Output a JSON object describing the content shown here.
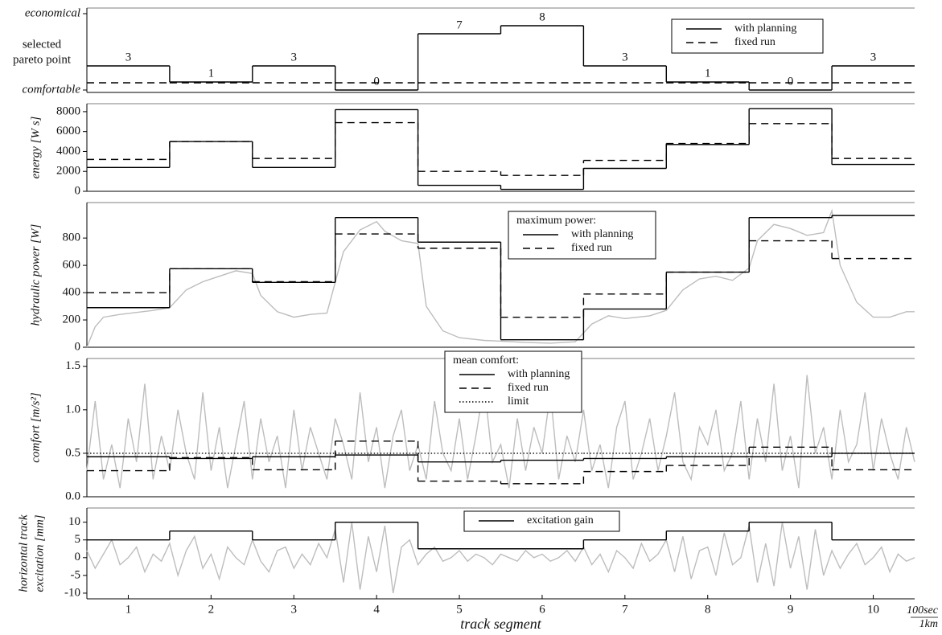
{
  "chart_data": [
    {
      "type": "step",
      "ylabel": [
        "selected",
        "pareto point"
      ],
      "xlim": [
        0.5,
        10.5
      ],
      "ylim": [
        -0.3,
        10.2
      ],
      "yticks": [
        {
          "value": 0,
          "label": "comfortable"
        },
        {
          "value": 9.5,
          "label": "economical"
        }
      ],
      "x": [
        1,
        2,
        3,
        4,
        5,
        6,
        7,
        8,
        9,
        10
      ],
      "data_labels": true,
      "legend": "upper right",
      "series": [
        {
          "name": "with planning",
          "color": "#000000",
          "dash": "solid",
          "values": [
            3,
            1,
            3,
            0,
            7,
            8,
            3,
            1,
            0,
            3
          ]
        },
        {
          "name": "fixed run",
          "color": "#000000",
          "dash": "dashed",
          "values": [
            0.9,
            0.9,
            0.9,
            0.9,
            0.9,
            0.9,
            0.9,
            0.9,
            0.9,
            0.9
          ]
        }
      ]
    },
    {
      "type": "step",
      "ylabel": [
        "energy [W s]"
      ],
      "xlim": [
        0.5,
        10.5
      ],
      "ylim": [
        0,
        8800
      ],
      "yticks": [
        0,
        2000,
        4000,
        6000,
        8000
      ],
      "x": [
        1,
        2,
        3,
        4,
        5,
        6,
        7,
        8,
        9,
        10
      ],
      "series": [
        {
          "color": "#000000",
          "dash": "solid",
          "values": [
            2400,
            5000,
            2400,
            8200,
            600,
            200,
            2300,
            4700,
            8300,
            2700
          ]
        },
        {
          "color": "#000000",
          "dash": "dashed",
          "values": [
            3200,
            5000,
            3300,
            6900,
            2000,
            1600,
            3100,
            4800,
            6800,
            3300
          ]
        }
      ]
    },
    {
      "type": "step",
      "ylabel": [
        "hydraulic power [W]"
      ],
      "xlim": [
        0.5,
        10.5
      ],
      "ylim": [
        0,
        1060
      ],
      "yticks": [
        0,
        200,
        400,
        600,
        800
      ],
      "x": [
        1,
        2,
        3,
        4,
        5,
        6,
        7,
        8,
        9,
        10
      ],
      "legend": "upper center",
      "legend_title": "maximum power:",
      "trace": {
        "color": "#bdbdbd",
        "x": [
          0.5,
          0.6,
          0.7,
          0.9,
          1.1,
          1.3,
          1.5,
          1.7,
          1.9,
          2.1,
          2.3,
          2.5,
          2.6,
          2.8,
          3.0,
          3.2,
          3.4,
          3.6,
          3.8,
          4.0,
          4.1,
          4.3,
          4.5,
          4.6,
          4.8,
          5.0,
          5.3,
          5.5,
          5.8,
          6.1,
          6.4,
          6.6,
          6.8,
          7.0,
          7.3,
          7.5,
          7.7,
          7.9,
          8.1,
          8.3,
          8.5,
          8.6,
          8.8,
          9.0,
          9.2,
          9.4,
          9.5,
          9.6,
          9.8,
          10.0,
          10.2,
          10.4,
          10.5
        ],
        "values": [
          0,
          150,
          220,
          240,
          255,
          270,
          290,
          420,
          480,
          520,
          560,
          540,
          380,
          260,
          220,
          240,
          250,
          700,
          860,
          920,
          850,
          780,
          760,
          300,
          120,
          70,
          50,
          45,
          35,
          30,
          40,
          170,
          230,
          210,
          230,
          270,
          420,
          500,
          520,
          490,
          580,
          780,
          900,
          870,
          820,
          840,
          1000,
          600,
          330,
          220,
          220,
          260,
          260
        ]
      },
      "series": [
        {
          "name": "with planning",
          "color": "#000000",
          "dash": "solid",
          "values": [
            290,
            575,
            475,
            950,
            770,
            55,
            280,
            550,
            950,
            965
          ]
        },
        {
          "name": "fixed run",
          "color": "#000000",
          "dash": "dashed",
          "values": [
            400,
            575,
            480,
            830,
            725,
            220,
            390,
            550,
            780,
            650
          ]
        }
      ]
    },
    {
      "type": "step",
      "ylabel": [
        "comfort [m/s²]"
      ],
      "xlim": [
        0.5,
        10.5
      ],
      "ylim": [
        0,
        1.59
      ],
      "yticks": [
        {
          "value": 0,
          "label": "0.0"
        },
        0.5,
        {
          "value": 1,
          "label": "1.0"
        },
        1.5
      ],
      "x": [
        1,
        2,
        3,
        4,
        5,
        6,
        7,
        8,
        9,
        10
      ],
      "legend": "upper center",
      "legend_title": "mean comfort:",
      "trace": {
        "color": "#bdbdbd",
        "x": [
          0.5,
          0.6,
          0.7,
          0.8,
          0.9,
          1.0,
          1.1,
          1.2,
          1.3,
          1.4,
          1.5,
          1.6,
          1.7,
          1.8,
          1.9,
          2.0,
          2.1,
          2.2,
          2.3,
          2.4,
          2.5,
          2.6,
          2.7,
          2.8,
          2.9,
          3.0,
          3.1,
          3.2,
          3.3,
          3.4,
          3.5,
          3.6,
          3.7,
          3.8,
          3.9,
          4.0,
          4.1,
          4.2,
          4.3,
          4.4,
          4.5,
          4.6,
          4.7,
          4.8,
          4.9,
          5.0,
          5.1,
          5.2,
          5.3,
          5.4,
          5.5,
          5.6,
          5.7,
          5.8,
          5.9,
          6.0,
          6.1,
          6.2,
          6.3,
          6.4,
          6.5,
          6.6,
          6.7,
          6.8,
          6.9,
          7.0,
          7.1,
          7.2,
          7.3,
          7.4,
          7.5,
          7.6,
          7.7,
          7.8,
          7.9,
          8.0,
          8.1,
          8.2,
          8.3,
          8.4,
          8.5,
          8.6,
          8.7,
          8.8,
          8.9,
          9.0,
          9.1,
          9.2,
          9.3,
          9.4,
          9.5,
          9.6,
          9.7,
          9.8,
          9.9,
          10.0,
          10.1,
          10.2,
          10.3,
          10.4,
          10.5
        ],
        "values": [
          0.3,
          1.1,
          0.2,
          0.6,
          0.1,
          0.9,
          0.4,
          1.3,
          0.2,
          0.7,
          0.3,
          1.0,
          0.5,
          0.2,
          1.2,
          0.3,
          0.8,
          0.1,
          0.6,
          1.1,
          0.2,
          0.9,
          0.4,
          0.7,
          0.1,
          1.0,
          0.3,
          0.8,
          0.5,
          0.2,
          0.9,
          0.6,
          0.2,
          1.2,
          0.4,
          0.8,
          0.1,
          0.7,
          1.0,
          0.3,
          0.6,
          0.2,
          1.1,
          0.5,
          0.3,
          0.9,
          0.2,
          0.7,
          1.3,
          0.4,
          0.6,
          0.1,
          0.9,
          0.3,
          0.8,
          0.5,
          1.2,
          0.2,
          0.7,
          0.4,
          1.0,
          0.3,
          0.6,
          0.1,
          0.8,
          1.1,
          0.2,
          0.5,
          0.9,
          0.3,
          0.7,
          1.2,
          0.4,
          0.2,
          0.8,
          0.6,
          1.0,
          0.3,
          0.5,
          1.1,
          0.2,
          0.9,
          0.4,
          1.3,
          0.3,
          0.7,
          0.1,
          1.4,
          0.5,
          0.8,
          0.2,
          1.0,
          0.4,
          0.6,
          1.2,
          0.3,
          0.9,
          0.5,
          0.2,
          0.8,
          0.4
        ]
      },
      "series": [
        {
          "name": "with planning",
          "color": "#000000",
          "dash": "solid",
          "values": [
            0.46,
            0.44,
            0.46,
            0.48,
            0.4,
            0.42,
            0.44,
            0.46,
            0.46,
            0.5
          ]
        },
        {
          "name": "fixed run",
          "color": "#000000",
          "dash": "dashed",
          "values": [
            0.3,
            0.45,
            0.31,
            0.64,
            0.18,
            0.15,
            0.29,
            0.36,
            0.57,
            0.31
          ]
        },
        {
          "name": "limit",
          "color": "#000000",
          "dash": "dotted",
          "values": [
            0.5,
            0.5,
            0.5,
            0.5,
            0.5,
            0.5,
            0.5,
            0.5,
            0.5,
            0.5
          ]
        }
      ]
    },
    {
      "type": "step",
      "ylabel": [
        "horizontal track",
        "excitation [mm]"
      ],
      "xlabel": "track segment",
      "x_scale": [
        "100sec",
        "1km"
      ],
      "xlim": [
        0.5,
        10.5
      ],
      "ylim": [
        -11.6,
        14
      ],
      "yticks": [
        -10,
        -5,
        0,
        5,
        10
      ],
      "x": [
        1,
        2,
        3,
        4,
        5,
        6,
        7,
        8,
        9,
        10
      ],
      "xticks": [
        1,
        2,
        3,
        4,
        5,
        6,
        7,
        8,
        9,
        10
      ],
      "legend": "upper center",
      "trace": {
        "color": "#bdbdbd",
        "x": [
          0.5,
          0.6,
          0.7,
          0.8,
          0.9,
          1.0,
          1.1,
          1.2,
          1.3,
          1.4,
          1.5,
          1.6,
          1.7,
          1.8,
          1.9,
          2.0,
          2.1,
          2.2,
          2.3,
          2.4,
          2.5,
          2.6,
          2.7,
          2.8,
          2.9,
          3.0,
          3.1,
          3.2,
          3.3,
          3.4,
          3.5,
          3.6,
          3.7,
          3.8,
          3.9,
          4.0,
          4.1,
          4.2,
          4.3,
          4.4,
          4.5,
          4.6,
          4.7,
          4.8,
          4.9,
          5.0,
          5.1,
          5.2,
          5.3,
          5.4,
          5.5,
          5.6,
          5.7,
          5.8,
          5.9,
          6.0,
          6.1,
          6.2,
          6.3,
          6.4,
          6.5,
          6.6,
          6.7,
          6.8,
          6.9,
          7.0,
          7.1,
          7.2,
          7.3,
          7.4,
          7.5,
          7.6,
          7.7,
          7.8,
          7.9,
          8.0,
          8.1,
          8.2,
          8.3,
          8.4,
          8.5,
          8.6,
          8.7,
          8.8,
          8.9,
          9.0,
          9.1,
          9.2,
          9.3,
          9.4,
          9.5,
          9.6,
          9.7,
          9.8,
          9.9,
          10.0,
          10.1,
          10.2,
          10.3,
          10.4,
          10.5
        ],
        "values": [
          2,
          -3,
          1,
          5,
          -2,
          0,
          3,
          -4,
          1,
          -1,
          4,
          -5,
          2,
          6,
          -3,
          1,
          -6,
          3,
          0,
          -2,
          5,
          -1,
          -4,
          2,
          3,
          -3,
          1,
          -2,
          4,
          0,
          8,
          -7,
          10,
          -9,
          6,
          -4,
          9,
          -10,
          3,
          5,
          -2,
          1,
          3,
          -1,
          0,
          2,
          -1,
          1,
          0,
          -2,
          1,
          0,
          -1,
          2,
          0,
          1,
          -1,
          0,
          2,
          -1,
          3,
          -2,
          1,
          -4,
          2,
          0,
          -3,
          4,
          -1,
          1,
          5,
          -4,
          6,
          -6,
          2,
          3,
          -5,
          7,
          -2,
          0,
          9,
          -7,
          4,
          -8,
          10,
          -3,
          6,
          -9,
          8,
          -5,
          2,
          -3,
          1,
          4,
          -2,
          0,
          3,
          -4,
          1,
          -1,
          0
        ]
      },
      "series": [
        {
          "name": "excitation gain",
          "color": "#000000",
          "dash": "solid",
          "values": [
            5,
            7.5,
            5,
            10,
            2.5,
            2.5,
            5,
            7.5,
            10,
            5
          ]
        }
      ]
    }
  ]
}
